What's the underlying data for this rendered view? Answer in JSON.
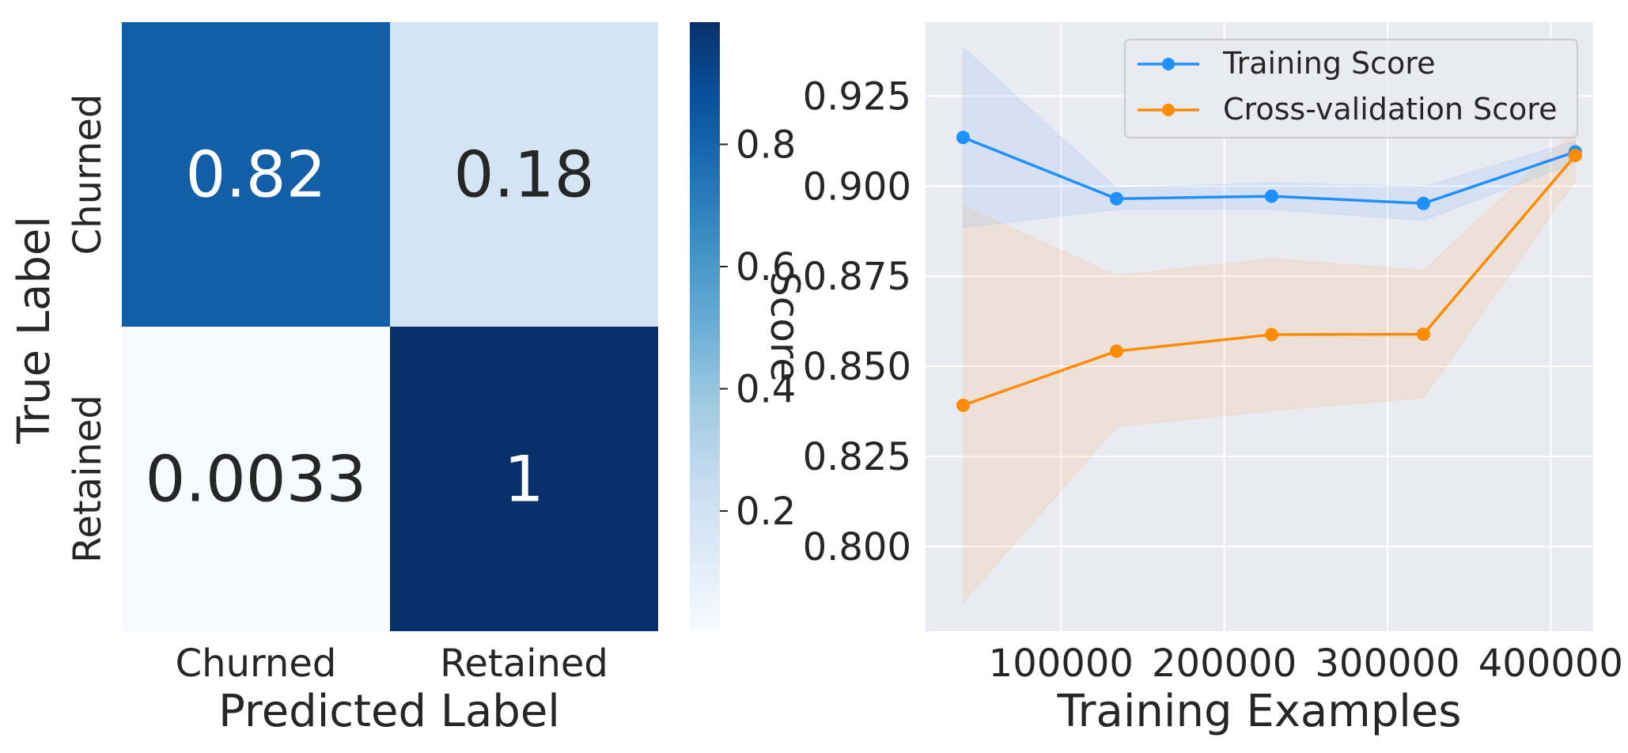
{
  "chart_data": [
    {
      "type": "heatmap",
      "xlabel": "Predicted Label",
      "ylabel": "True Label",
      "x_categories": [
        "Churned",
        "Retained"
      ],
      "y_categories": [
        "Churned",
        "Retained"
      ],
      "values": [
        [
          0.82,
          0.18
        ],
        [
          0.0033,
          1
        ]
      ],
      "annotations": [
        [
          "0.82",
          "0.18"
        ],
        [
          "0.0033",
          "1"
        ]
      ],
      "colormap": "Blues",
      "colorbar": {
        "label": "Score",
        "range": [
          0.0033,
          1
        ],
        "ticks": [
          0.2,
          0.4,
          0.6,
          0.8
        ],
        "tick_labels": [
          "0.2",
          "0.4",
          "0.6",
          "0.8"
        ]
      }
    },
    {
      "type": "line",
      "xlabel": "Training Examples",
      "ylabel": "",
      "xlim": [
        17000,
        426000
      ],
      "ylim": [
        0.7765,
        0.9455
      ],
      "x_ticks": [
        100000,
        200000,
        300000,
        400000
      ],
      "x_tick_labels": [
        "100000",
        "200000",
        "300000",
        "400000"
      ],
      "y_ticks": [
        0.8,
        0.825,
        0.85,
        0.875,
        0.9,
        0.925
      ],
      "y_tick_labels": [
        "0.800",
        "0.825",
        "0.850",
        "0.875",
        "0.900",
        "0.925"
      ],
      "grid": true,
      "legend_position": "top-right",
      "x": [
        40000,
        134000,
        229000,
        322000,
        415000
      ],
      "series": [
        {
          "name": "Training Score",
          "color": "#1e90ff",
          "values": [
            0.9135,
            0.8965,
            0.8972,
            0.8952,
            0.9095
          ],
          "band_lower": [
            0.8885,
            0.8935,
            0.8935,
            0.8905,
            0.9065
          ],
          "band_upper": [
            0.9385,
            0.8995,
            0.9009,
            0.8999,
            0.9125
          ]
        },
        {
          "name": "Cross-validation Score",
          "color": "#ff8c00",
          "values": [
            0.8392,
            0.8542,
            0.8588,
            0.8589,
            0.9085
          ],
          "band_lower": [
            0.7845,
            0.8332,
            0.8377,
            0.8412,
            0.9015
          ],
          "band_upper": [
            0.8945,
            0.8752,
            0.8799,
            0.8766,
            0.9155
          ]
        }
      ]
    }
  ]
}
